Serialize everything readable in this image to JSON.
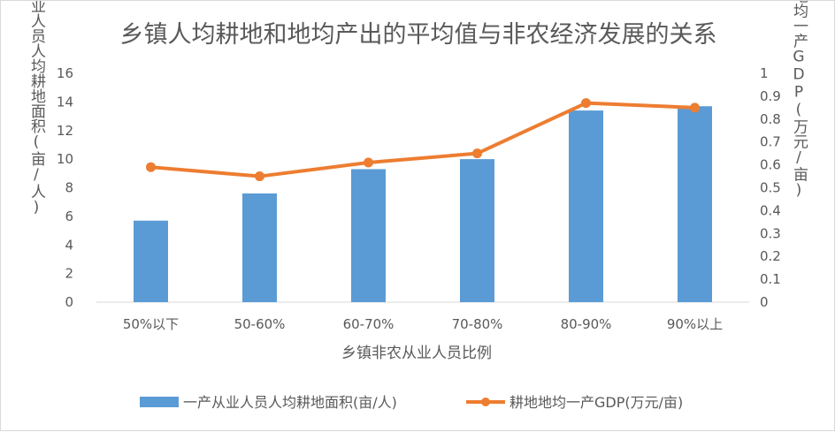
{
  "colors": {
    "bar": "#5B9BD5",
    "line": "#ED7D31",
    "grid": "#d9d9d9",
    "text": "#595959"
  },
  "chart_data": {
    "type": "bar",
    "title": "乡镇人均耕地和地均产出的平均值与非农经济发展的关系",
    "xlabel": "乡镇非农从业人员比例",
    "ylabel": "一产从业人员人均耕地面积(亩/人)",
    "y2label": "耕地地均一产GDP(万元/亩)",
    "categories": [
      "50%以下",
      "50-60%",
      "60-70%",
      "70-80%",
      "80-90%",
      "90%以上"
    ],
    "ylim": [
      0,
      16
    ],
    "yticks": [
      "0",
      "2",
      "4",
      "6",
      "8",
      "10",
      "12",
      "14",
      "16"
    ],
    "y2lim": [
      0,
      1
    ],
    "y2ticks": [
      "0",
      "0.1",
      "0.2",
      "0.3",
      "0.4",
      "0.5",
      "0.6",
      "0.7",
      "0.8",
      "0.9",
      "1"
    ],
    "grid": false,
    "legend": "bottom",
    "series": [
      {
        "name": "一产从业人员人均耕地面积(亩/人)",
        "type": "bar",
        "axis": "left",
        "values": [
          5.7,
          7.6,
          9.3,
          10.0,
          13.4,
          13.7
        ]
      },
      {
        "name": "耕地地均一产GDP(万元/亩)",
        "type": "line",
        "axis": "right",
        "values": [
          0.59,
          0.55,
          0.61,
          0.65,
          0.87,
          0.85
        ]
      }
    ]
  }
}
